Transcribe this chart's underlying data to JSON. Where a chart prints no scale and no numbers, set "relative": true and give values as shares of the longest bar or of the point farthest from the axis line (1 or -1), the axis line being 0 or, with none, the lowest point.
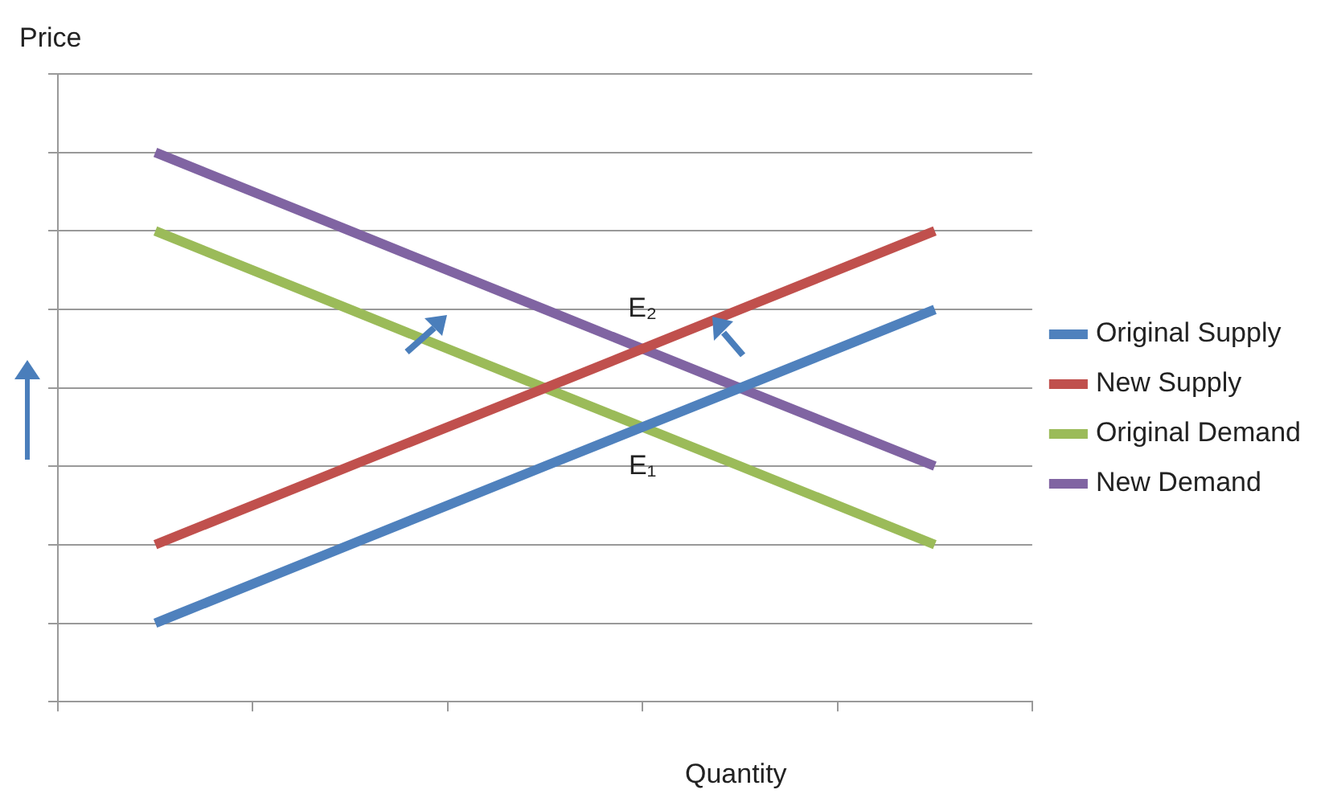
{
  "chart_data": {
    "type": "line",
    "xlabel": "Quantity",
    "ylabel": "Price",
    "relative": true,
    "categories": [
      null,
      null,
      null,
      null,
      null
    ],
    "grid": "y",
    "legend": "right",
    "marker": "none",
    "line_style": "solid",
    "series": [
      {
        "name": "Original Supply",
        "color": "#4f81bd",
        "values": [
          0.143,
          0.286,
          0.429,
          0.571,
          0.714
        ]
      },
      {
        "name": "New Supply",
        "color": "#c0504d",
        "values": [
          0.286,
          0.429,
          0.571,
          0.714,
          0.857
        ]
      },
      {
        "name": "Original Demand",
        "color": "#9bbb59",
        "values": [
          0.857,
          0.714,
          0.571,
          0.429,
          0.286
        ]
      },
      {
        "name": "New Demand",
        "color": "#8064a2",
        "values": [
          1,
          0.857,
          0.714,
          0.571,
          0.429
        ]
      }
    ],
    "annotations": [
      {
        "text": "E₂",
        "y": 0.643
      },
      {
        "text": "E₁",
        "y": 0.5
      }
    ]
  }
}
